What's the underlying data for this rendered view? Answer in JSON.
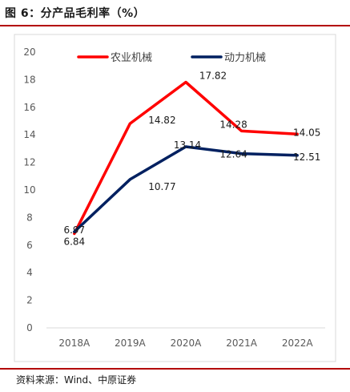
{
  "header": {
    "title": "图 6：分产品毛利率（%）"
  },
  "footer": {
    "source": "资料来源：Wind、中原证券"
  },
  "chart_data": {
    "type": "line",
    "title": "",
    "xlabel": "",
    "ylabel": "",
    "categories": [
      "2018A",
      "2019A",
      "2020A",
      "2021A",
      "2022A"
    ],
    "ylim": [
      0,
      20
    ],
    "yticks": [
      0,
      2,
      4,
      6,
      8,
      10,
      12,
      14,
      16,
      18,
      20
    ],
    "grid": false,
    "legend": "top",
    "series": [
      {
        "name": "农业机械",
        "color": "#ff0000",
        "values": [
          6.84,
          14.82,
          17.82,
          14.28,
          14.05
        ],
        "labels": [
          "6.84",
          "14.82",
          "17.82",
          "14.28",
          "14.05"
        ]
      },
      {
        "name": "动力机械",
        "color": "#002060",
        "values": [
          6.97,
          10.77,
          13.14,
          12.64,
          12.51
        ],
        "labels": [
          "6.97",
          "10.77",
          "13.14",
          "12.64",
          "12.51"
        ]
      }
    ]
  }
}
